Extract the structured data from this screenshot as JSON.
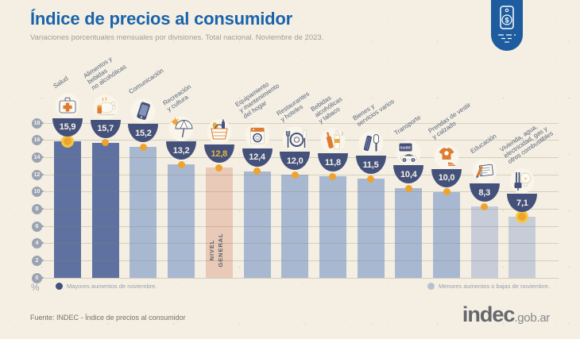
{
  "header": {
    "title": "Índice de precios al consumidor",
    "subtitle": "Variaciones porcentuales mensuales por divisiones. Total nacional. Noviembre de 2023.",
    "badge_icon": "price-tag-icon"
  },
  "chart_data": {
    "type": "bar",
    "title": "Índice de precios al consumidor",
    "xlabel": "",
    "ylabel": "%",
    "ylim": [
      0,
      18
    ],
    "yticks": [
      0,
      2,
      4,
      6,
      8,
      10,
      12,
      14,
      16,
      18
    ],
    "grid": true,
    "categories": [
      "Salud",
      "Alimentos y\nbebidas\nno alcohólicas",
      "Comunicación",
      "Recreación\ny cultura",
      "NIVEL GENERAL",
      "Equipamiento\ny mantenimiento\ndel hogar",
      "Restaurantes\ny hoteles",
      "Bebidas\nalcohólicas\ny tabaco",
      "Bienes y\nservicios varios",
      "Transporte",
      "Prendas de vestir\ny calzado",
      "Educación",
      "Vivienda, agua,\nelectricidad, gas y\notros combustibles"
    ],
    "values": [
      15.9,
      15.7,
      15.2,
      13.2,
      12.8,
      12.4,
      12.0,
      11.8,
      11.5,
      10.4,
      10.0,
      8.3,
      7.1
    ],
    "value_labels": [
      "15,9",
      "15,7",
      "15,2",
      "13,2",
      "12,8",
      "12,4",
      "12,0",
      "11,8",
      "11,5",
      "10,4",
      "10,0",
      "8,3",
      "7,1"
    ],
    "icons": [
      "first-aid-kit-icon",
      "food-icon",
      "smartphone-icon",
      "umbrella-sun-icon",
      "shopping-basket-icon",
      "washing-machine-icon",
      "plate-cutlery-icon",
      "bottles-icon",
      "comb-razor-icon",
      "sube-card-car-icon",
      "tshirt-shoe-icon",
      "notebook-pencil-icon",
      "bulb-plug-icon"
    ],
    "bar_styles": [
      "dark",
      "dark",
      "light",
      "light",
      "general",
      "light",
      "light",
      "light",
      "light",
      "light",
      "light",
      "lighter",
      "lighter"
    ],
    "highlight_dots": [
      0,
      12
    ],
    "general_bar_label": "NIVEL\nGENERAL",
    "legend_position": "bottom"
  },
  "legend": {
    "high": "Mayores aumentos de noviembre.",
    "low": "Menores aumentos o bajas de noviembre."
  },
  "footer": {
    "source": "Fuente: INDEC - Índice de precios al consumidor",
    "logo": "indec",
    "logo_suffix": ".gob.ar"
  },
  "colors": {
    "background": "#f4efe2",
    "title_blue": "#1a63ac",
    "navy": "#44517b",
    "bar_dark": "#5e71a0",
    "bar_light": "#a9b8d1",
    "bar_lighter": "#c6cdd9",
    "bar_general": "#e9c9b7",
    "dot_orange": "#efa32c",
    "ring_gold": "#f3c846",
    "value_gold": "#e8b340",
    "icon_orange": "#dc7b32"
  }
}
